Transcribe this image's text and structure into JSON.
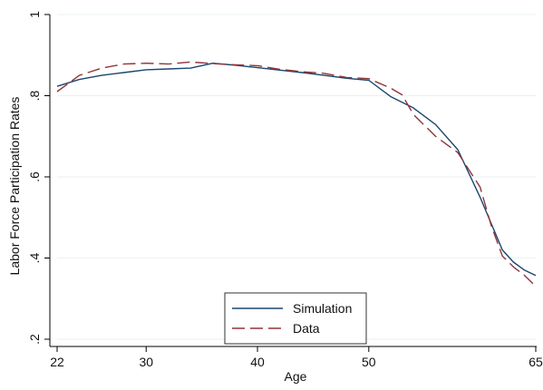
{
  "chart_data": {
    "type": "line",
    "title": "",
    "xlabel": "Age",
    "ylabel": "Labor Force Participation Rates",
    "xlim": [
      22,
      65
    ],
    "ylim": [
      0.2,
      1.0
    ],
    "xticks": [
      22,
      30,
      40,
      50,
      65
    ],
    "xtick_labels": [
      "22",
      "30",
      "40",
      "50",
      "65"
    ],
    "yticks": [
      0.2,
      0.4,
      0.6,
      0.8,
      1.0
    ],
    "ytick_labels": [
      ".2",
      ".4",
      ".6",
      ".8",
      "1"
    ],
    "grid": true,
    "legend_position": "bottom-center",
    "series": [
      {
        "name": "Simulation",
        "color": "#1a476f",
        "style": "solid",
        "x": [
          22,
          24,
          26,
          28,
          30,
          32,
          34,
          36,
          38,
          40,
          42,
          44,
          46,
          48,
          50,
          52,
          54,
          56,
          58,
          60,
          61,
          62,
          63,
          64,
          65
        ],
        "y": [
          0.823,
          0.84,
          0.85,
          0.857,
          0.864,
          0.866,
          0.868,
          0.88,
          0.875,
          0.869,
          0.863,
          0.857,
          0.85,
          0.843,
          0.838,
          0.797,
          0.77,
          0.729,
          0.667,
          0.55,
          0.485,
          0.42,
          0.39,
          0.37,
          0.357
        ]
      },
      {
        "name": "Data",
        "color": "#90353b",
        "style": "dashed",
        "x": [
          22,
          24,
          26,
          28,
          30,
          32,
          34,
          36,
          38,
          40,
          42,
          44,
          46,
          48,
          50,
          52,
          53,
          54,
          56,
          58,
          60,
          61,
          62,
          63,
          64,
          65
        ],
        "y": [
          0.81,
          0.85,
          0.868,
          0.878,
          0.88,
          0.878,
          0.883,
          0.879,
          0.876,
          0.874,
          0.865,
          0.859,
          0.855,
          0.845,
          0.842,
          0.818,
          0.802,
          0.754,
          0.7,
          0.66,
          0.575,
          0.48,
          0.405,
          0.378,
          0.357,
          0.33
        ]
      }
    ]
  }
}
